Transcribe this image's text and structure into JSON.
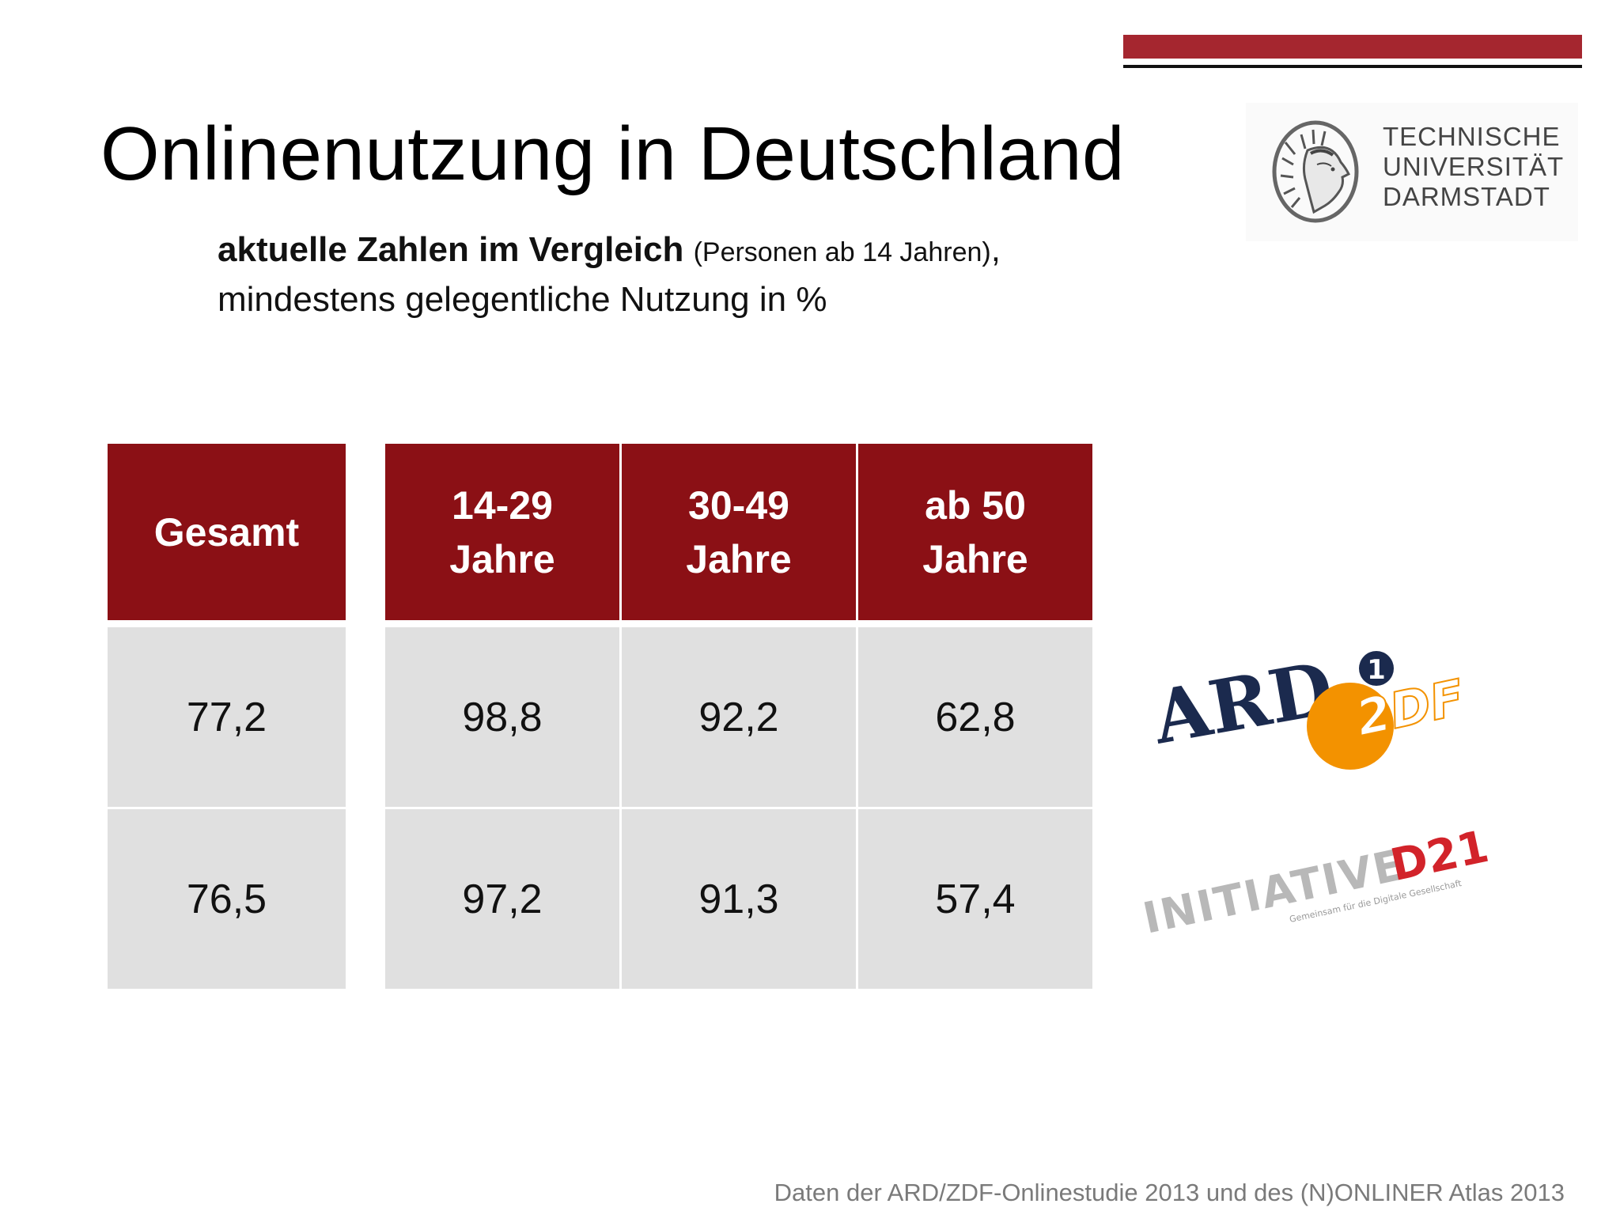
{
  "slide": {
    "title": "Onlinenutzung in Deutschland",
    "subtitle_bold": "aktuelle Zahlen im Vergleich",
    "subtitle_small": "(Personen ab 14 Jahren)",
    "subtitle_comma": ",",
    "subtitle_line2": "mindestens gelegentliche Nutzung in %",
    "footer": "Daten der ARD/ZDF-Onlinestudie 2013 und des (N)ONLINER Atlas 2013"
  },
  "tu_logo": {
    "line1": "TECHNISCHE",
    "line2": "UNIVERSITÄT",
    "line3": "DARMSTADT"
  },
  "table": {
    "headers": [
      {
        "line1": "Gesamt",
        "line2": ""
      },
      {
        "line1": "14-29",
        "line2": "Jahre"
      },
      {
        "line1": "30-49",
        "line2": "Jahre"
      },
      {
        "line1": "ab 50",
        "line2": "Jahre"
      }
    ],
    "rows": [
      [
        "77,2",
        "98,8",
        "92,2",
        "62,8"
      ],
      [
        "76,5",
        "97,2",
        "91,3",
        "57,4"
      ]
    ]
  },
  "logos": {
    "ard_text": "ARD",
    "ard_number": "1",
    "zdf_text": "2DF",
    "initiative_text": "INITIATIVE",
    "d21_text": "D21",
    "d21_tagline": "Gemeinsam für die Digitale Gesellschaft"
  },
  "colors": {
    "header_red": "#8b1015",
    "accent_bar": "#a5262f",
    "cell_gray": "#e0e0e0",
    "zdf_orange": "#f39200",
    "ard_navy": "#1b2a4e"
  }
}
